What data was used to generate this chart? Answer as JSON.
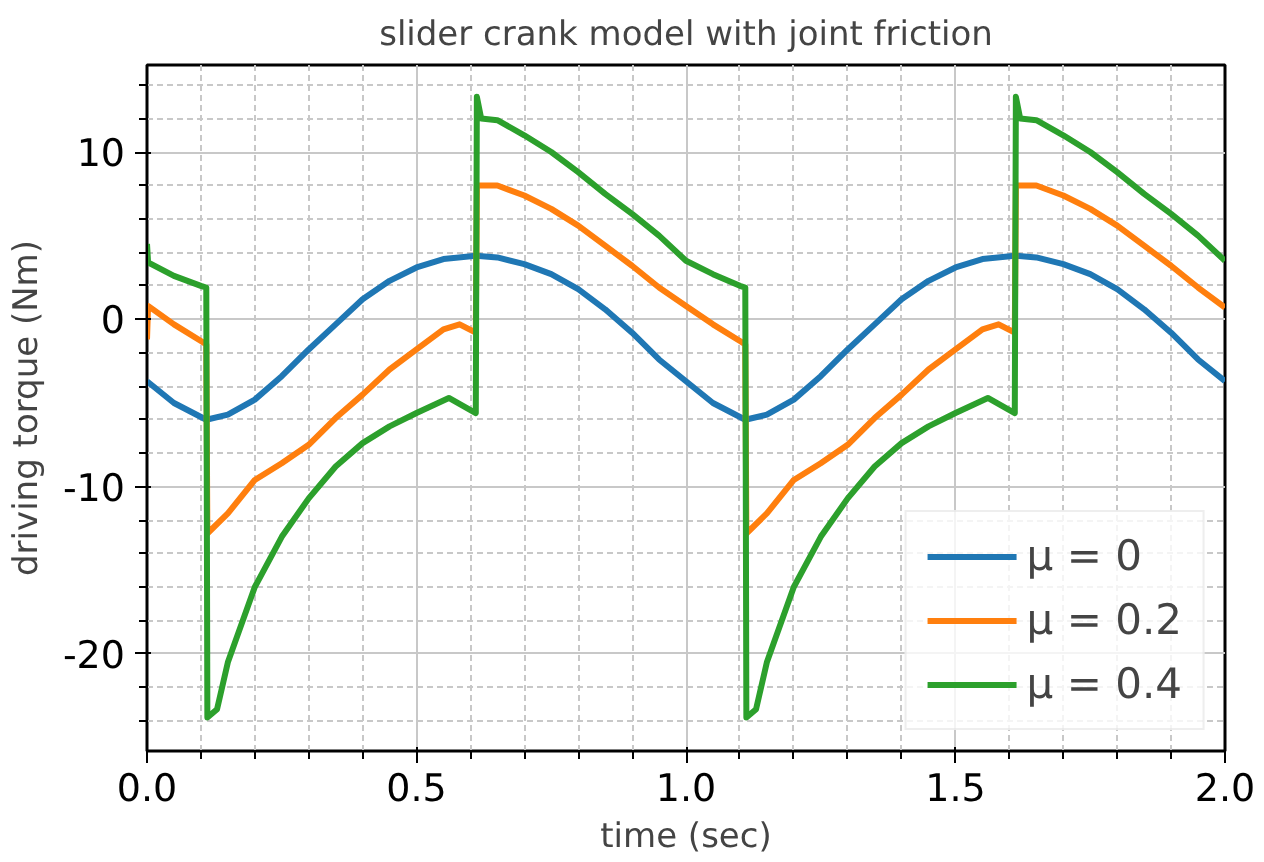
{
  "chart_data": {
    "type": "line",
    "title": "slider crank model with joint friction",
    "xlabel": "time (sec)",
    "ylabel": "driving torque (Nm)",
    "xlim": [
      0,
      2
    ],
    "ylim": [
      -25.8,
      15.2
    ],
    "xticks": [
      {
        "value": 0,
        "label": "0.0"
      },
      {
        "value": 0.1,
        "label": null
      },
      {
        "value": 0.2,
        "label": null
      },
      {
        "value": 0.3,
        "label": null
      },
      {
        "value": 0.4,
        "label": null
      },
      {
        "value": 0.5,
        "label": "0.5"
      },
      {
        "value": 0.6,
        "label": null
      },
      {
        "value": 0.7,
        "label": null
      },
      {
        "value": 0.8,
        "label": null
      },
      {
        "value": 0.9,
        "label": null
      },
      {
        "value": 1,
        "label": "1.0"
      },
      {
        "value": 1.1,
        "label": null
      },
      {
        "value": 1.2,
        "label": null
      },
      {
        "value": 1.3,
        "label": null
      },
      {
        "value": 1.4,
        "label": null
      },
      {
        "value": 1.5,
        "label": "1.5"
      },
      {
        "value": 1.6,
        "label": null
      },
      {
        "value": 1.7,
        "label": null
      },
      {
        "value": 1.8,
        "label": null
      },
      {
        "value": 1.9,
        "label": null
      },
      {
        "value": 2,
        "label": "2.0"
      }
    ],
    "yticks": [
      {
        "value": -24,
        "label": null
      },
      {
        "value": -22,
        "label": null
      },
      -20,
      {
        "value": -18,
        "label": null
      },
      {
        "value": -16,
        "label": null
      },
      {
        "value": -14,
        "label": null
      },
      {
        "value": -12,
        "label": null
      },
      -10,
      {
        "value": -8,
        "label": null
      },
      {
        "value": -6,
        "label": null
      },
      {
        "value": -4,
        "label": null
      },
      {
        "value": -2,
        "label": null
      },
      0,
      {
        "value": 2,
        "label": null
      },
      {
        "value": 4,
        "label": null
      },
      {
        "value": 6,
        "label": null
      },
      {
        "value": 8,
        "label": null
      },
      10,
      {
        "value": 12,
        "label": null
      },
      {
        "value": 14,
        "label": null
      }
    ],
    "grid": true,
    "legend": "bottom right",
    "line_style": "solid",
    "marker": "none",
    "series": [
      {
        "name": "μ = 0",
        "color": "#1f77b4",
        "x": [
          0,
          0.05,
          0.11,
          0.15,
          0.2,
          0.25,
          0.3,
          0.35,
          0.4,
          0.45,
          0.5,
          0.55,
          0.61,
          0.65,
          0.7,
          0.75,
          0.8,
          0.85,
          0.9,
          0.95,
          1.0,
          1.05,
          1.11,
          1.15,
          1.2,
          1.25,
          1.3,
          1.35,
          1.4,
          1.45,
          1.5,
          1.55,
          1.61,
          1.65,
          1.7,
          1.75,
          1.8,
          1.85,
          1.9,
          1.95,
          2.0
        ],
        "values": [
          -3.7,
          -5.0,
          -6.0,
          -5.7,
          -4.8,
          -3.4,
          -1.8,
          -0.3,
          1.2,
          2.3,
          3.1,
          3.6,
          3.8,
          3.7,
          3.3,
          2.7,
          1.8,
          0.6,
          -0.8,
          -2.4,
          -3.7,
          -5.0,
          -6.0,
          -5.7,
          -4.8,
          -3.4,
          -1.8,
          -0.3,
          1.2,
          2.3,
          3.1,
          3.6,
          3.8,
          3.7,
          3.3,
          2.7,
          1.8,
          0.6,
          -0.8,
          -2.4,
          -3.7
        ]
      },
      {
        "name": "μ = 0.2",
        "color": "#ff7f0e",
        "x": [
          0,
          0.002,
          0.05,
          0.1,
          0.11,
          0.112,
          0.15,
          0.2,
          0.25,
          0.3,
          0.35,
          0.4,
          0.45,
          0.5,
          0.55,
          0.58,
          0.61,
          0.612,
          0.65,
          0.7,
          0.75,
          0.8,
          0.85,
          0.9,
          0.95,
          1.0,
          1.05,
          1.1,
          1.11,
          1.112,
          1.15,
          1.2,
          1.25,
          1.3,
          1.35,
          1.4,
          1.45,
          1.5,
          1.55,
          1.58,
          1.61,
          1.612,
          1.65,
          1.7,
          1.75,
          1.8,
          1.85,
          1.9,
          1.95,
          2.0
        ],
        "values": [
          -1.2,
          0.8,
          -0.3,
          -1.3,
          -1.5,
          -12.8,
          -11.6,
          -9.6,
          -8.6,
          -7.5,
          -5.9,
          -4.5,
          -3.0,
          -1.8,
          -0.6,
          -0.3,
          -0.8,
          8.0,
          8.0,
          7.4,
          6.6,
          5.6,
          4.4,
          3.2,
          1.9,
          0.8,
          -0.3,
          -1.3,
          -1.5,
          -12.8,
          -11.6,
          -9.6,
          -8.6,
          -7.5,
          -5.9,
          -4.5,
          -3.0,
          -1.8,
          -0.6,
          -0.3,
          -0.8,
          8.0,
          8.0,
          7.4,
          6.6,
          5.6,
          4.4,
          3.2,
          1.9,
          0.7
        ]
      },
      {
        "name": "μ = 0.4",
        "color": "#2ca02c",
        "x": [
          0,
          0.002,
          0.05,
          0.1,
          0.11,
          0.112,
          0.13,
          0.15,
          0.2,
          0.25,
          0.3,
          0.35,
          0.4,
          0.45,
          0.5,
          0.56,
          0.61,
          0.612,
          0.62,
          0.65,
          0.7,
          0.75,
          0.8,
          0.85,
          0.9,
          0.95,
          1.0,
          1.05,
          1.1,
          1.11,
          1.112,
          1.13,
          1.15,
          1.2,
          1.25,
          1.3,
          1.35,
          1.4,
          1.45,
          1.5,
          1.56,
          1.61,
          1.612,
          1.62,
          1.65,
          1.7,
          1.75,
          1.8,
          1.85,
          1.9,
          1.95,
          2.0
        ],
        "values": [
          4.5,
          3.4,
          2.6,
          2.0,
          1.9,
          -23.8,
          -23.3,
          -20.5,
          -16.0,
          -13.0,
          -10.7,
          -8.8,
          -7.4,
          -6.4,
          -5.6,
          -4.7,
          -5.6,
          13.3,
          12.0,
          11.9,
          11.0,
          10.0,
          8.8,
          7.5,
          6.3,
          5.0,
          3.5,
          2.7,
          2.0,
          1.9,
          -23.8,
          -23.3,
          -20.5,
          -16.0,
          -13.0,
          -10.7,
          -8.8,
          -7.4,
          -6.4,
          -5.6,
          -4.7,
          -5.6,
          13.3,
          12.0,
          11.9,
          11.0,
          10.0,
          8.8,
          7.5,
          6.3,
          5.0,
          3.5
        ]
      }
    ]
  }
}
